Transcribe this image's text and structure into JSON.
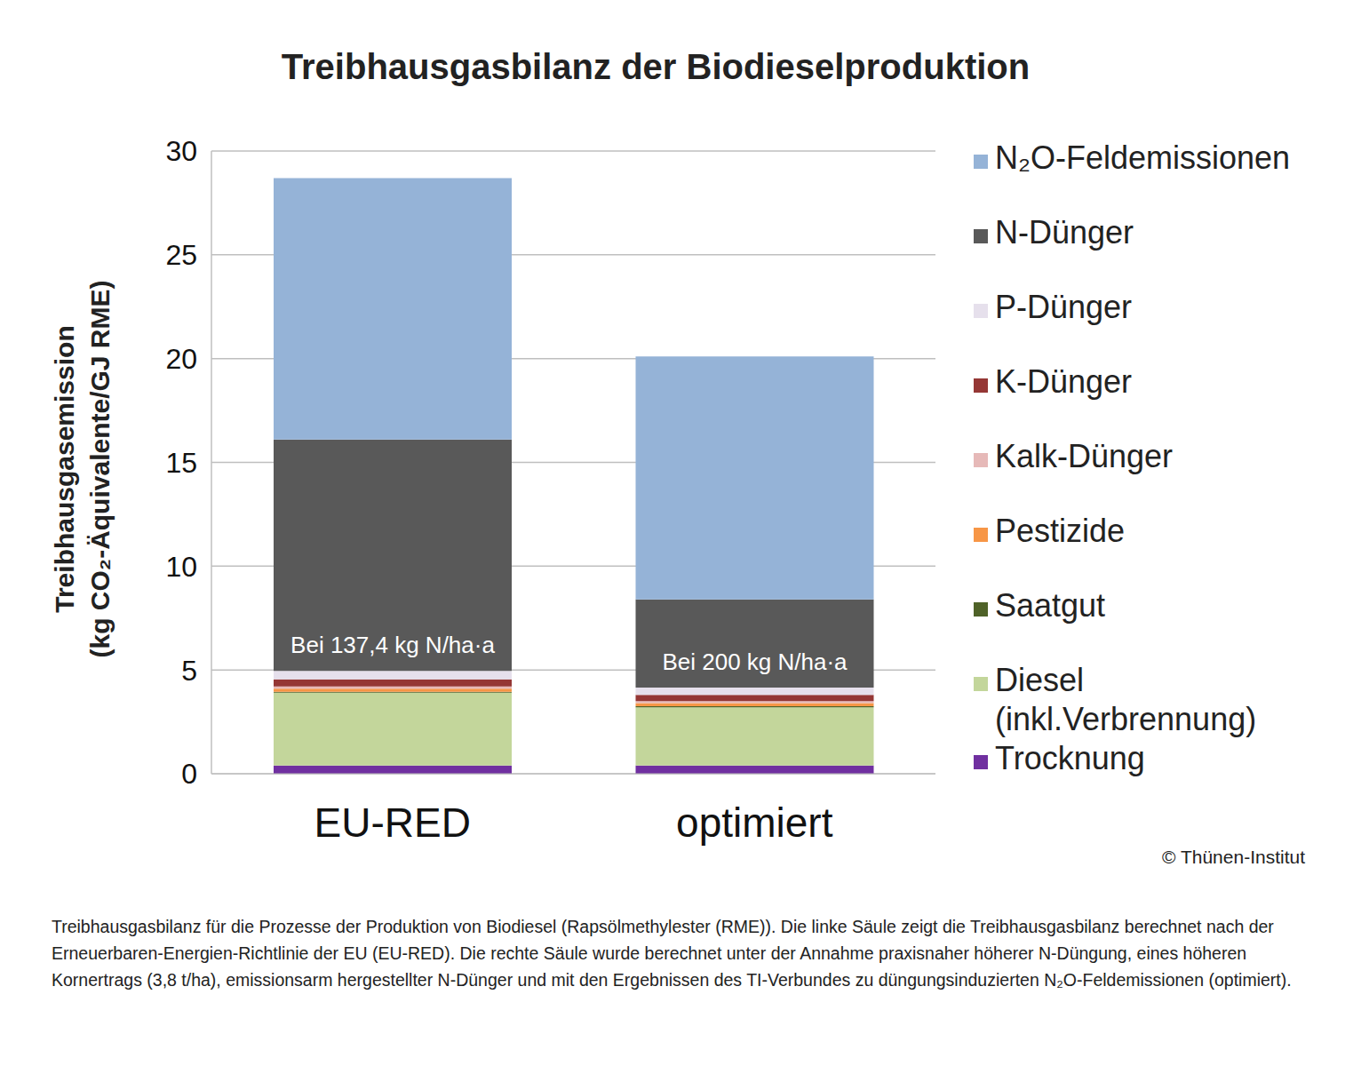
{
  "chart_data": {
    "type": "bar",
    "title": "Treibhausgasbilanz der Biodieselproduktion",
    "y_label": [
      "Treibhausgasemission",
      "(kg CO₂-Äquivalente/GJ RME)"
    ],
    "categories": [
      "EU-RED",
      "optimiert"
    ],
    "series": [
      {
        "name": "Trocknung",
        "color": "#7030a0",
        "values": [
          0.4,
          0.4
        ]
      },
      {
        "name": "Diesel (inkl.Verbrennung)",
        "color": "#c3d69b",
        "values": [
          3.5,
          2.8
        ]
      },
      {
        "name": "Saatgut",
        "color": "#4f6228",
        "values": [
          0.05,
          0.05
        ]
      },
      {
        "name": "Pestizide",
        "color": "#f79646",
        "values": [
          0.15,
          0.15
        ]
      },
      {
        "name": "Kalk-Dünger",
        "color": "#e6b9b8",
        "values": [
          0.1,
          0.1
        ]
      },
      {
        "name": "K-Dünger",
        "color": "#953735",
        "values": [
          0.35,
          0.3
        ]
      },
      {
        "name": "P-Dünger",
        "color": "#e6e0ec",
        "values": [
          0.4,
          0.35
        ]
      },
      {
        "name": "N-Dünger",
        "color": "#595959",
        "values": [
          11.15,
          4.25
        ],
        "annotations": [
          "Bei 137,4 kg N/ha·a",
          "Bei 200 kg N/ha·a"
        ]
      },
      {
        "name": "N₂O-Feldemissionen",
        "color": "#95b3d7",
        "values": [
          12.6,
          11.7
        ]
      }
    ],
    "stacked": true,
    "ylim": [
      0,
      30
    ],
    "yticks": [
      0,
      5,
      10,
      15,
      20,
      25,
      30
    ],
    "grid": true,
    "legend": "right",
    "copyright": "© Thünen-Institut",
    "caption": "Treibhausgasbilanz für die Prozesse der Produktion von Biodiesel (Rapsölmethylester (RME)). Die linke Säule zeigt die Treibhausgasbilanz berechnet nach der Erneuerbaren-Energien-Richtlinie der EU (EU-RED). Die rechte Säule wurde berechnet unter der Annahme praxisnaher höherer N-Düngung, eines  höheren Kornertrags (3,8 t/ha), emissionsarm hergestellter N-Dünger und mit den Ergebnissen des TI-Verbundes zu düngungsinduzierten N₂O-Feldemissionen (optimiert)."
  }
}
